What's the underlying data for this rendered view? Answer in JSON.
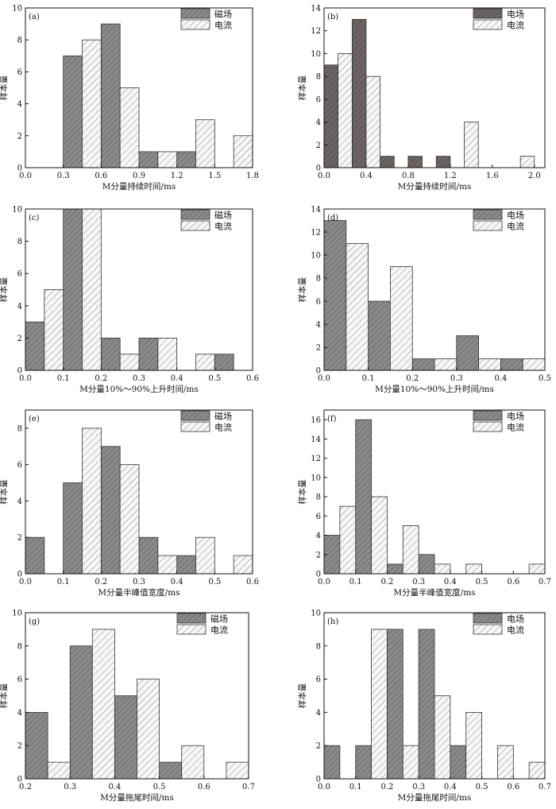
{
  "colors": {
    "dark_bar": "#8a8a8a",
    "dark_bar_b": "#6e6464",
    "light_bar": "#f4f4f4",
    "hatch": "#555555",
    "axis": "#111111"
  },
  "chart_data": [
    {
      "type": "bar",
      "panel": "(a)",
      "xlabel": "M分量持续时间/ms",
      "ylabel": "样本量",
      "xlim": [
        0,
        1.8
      ],
      "ylim": [
        0,
        10
      ],
      "xticks": [
        "0.0",
        "0.3",
        "0.6",
        "0.9",
        "1.2",
        "1.5",
        "1.8"
      ],
      "xtick_values": [
        0,
        0.3,
        0.6,
        0.9,
        1.2,
        1.5,
        1.8
      ],
      "yticks": [
        "0",
        "2",
        "4",
        "6",
        "8",
        "10"
      ],
      "ytick_values": [
        0,
        2,
        4,
        6,
        8,
        10
      ],
      "bin_width": 0.15,
      "legend_position": "top-right",
      "series": [
        {
          "name": "磁场",
          "style": "dark",
          "bins": [
            [
              0.3,
              0.45,
              7
            ],
            [
              0.6,
              0.75,
              9
            ],
            [
              0.9,
              1.05,
              1
            ],
            [
              1.2,
              1.35,
              1
            ]
          ]
        },
        {
          "name": "电流",
          "style": "light",
          "bins": [
            [
              0.45,
              0.6,
              8
            ],
            [
              0.75,
              0.9,
              5
            ],
            [
              1.05,
              1.2,
              1
            ],
            [
              1.35,
              1.5,
              3
            ],
            [
              1.65,
              1.8,
              2
            ]
          ]
        }
      ]
    },
    {
      "type": "bar",
      "panel": "(b)",
      "xlabel": "M分量持续时间/ms",
      "ylabel": "样本量",
      "xlim": [
        0,
        2.1
      ],
      "ylim": [
        0,
        14
      ],
      "xticks": [
        "0.0",
        "0.4",
        "0.8",
        "1.2",
        "1.6",
        "2.0"
      ],
      "xtick_values": [
        0,
        0.4,
        0.8,
        1.2,
        1.6,
        2.0
      ],
      "yticks": [
        "0",
        "2",
        "4",
        "6",
        "8",
        "10",
        "12",
        "14"
      ],
      "ytick_values": [
        0,
        2,
        4,
        6,
        8,
        10,
        12,
        14
      ],
      "bin_width": 0.133,
      "legend_position": "top-right",
      "series": [
        {
          "name": "电场",
          "style": "dark_b",
          "bins": [
            [
              0,
              0.133,
              9
            ],
            [
              0.267,
              0.4,
              13
            ],
            [
              0.533,
              0.667,
              1
            ],
            [
              0.8,
              0.933,
              1
            ],
            [
              1.067,
              1.2,
              1
            ]
          ]
        },
        {
          "name": "电流",
          "style": "light",
          "bins": [
            [
              0.133,
              0.267,
              10
            ],
            [
              0.4,
              0.533,
              8
            ],
            [
              1.333,
              1.467,
              4
            ],
            [
              1.867,
              2.0,
              1
            ]
          ]
        }
      ]
    },
    {
      "type": "bar",
      "panel": "(c)",
      "xlabel": "M分量10%～90%上升时间/ms",
      "ylabel": "样本量",
      "xlim": [
        0,
        0.6
      ],
      "ylim": [
        0,
        10
      ],
      "xticks": [
        "0.0",
        "0.1",
        "0.2",
        "0.3",
        "0.4",
        "0.5",
        "0.6"
      ],
      "xtick_values": [
        0,
        0.1,
        0.2,
        0.3,
        0.4,
        0.5,
        0.6
      ],
      "yticks": [
        "0",
        "2",
        "4",
        "6",
        "8",
        "10"
      ],
      "ytick_values": [
        0,
        2,
        4,
        6,
        8,
        10
      ],
      "bin_width": 0.05,
      "legend_position": "top-right",
      "series": [
        {
          "name": "磁场",
          "style": "dark",
          "bins": [
            [
              0,
              0.05,
              3
            ],
            [
              0.1,
              0.15,
              10
            ],
            [
              0.2,
              0.25,
              2
            ],
            [
              0.3,
              0.35,
              2
            ],
            [
              0.5,
              0.55,
              1
            ]
          ]
        },
        {
          "name": "电流",
          "style": "light",
          "bins": [
            [
              0.05,
              0.1,
              5
            ],
            [
              0.15,
              0.2,
              10
            ],
            [
              0.25,
              0.3,
              1
            ],
            [
              0.35,
              0.4,
              2
            ],
            [
              0.45,
              0.5,
              1
            ]
          ]
        }
      ]
    },
    {
      "type": "bar",
      "panel": "(d)",
      "xlabel": "M分量10%～90%上升时间/ms",
      "ylabel": "样本量",
      "xlim": [
        0,
        0.5
      ],
      "ylim": [
        0,
        14
      ],
      "xticks": [
        "0.0",
        "0.1",
        "0.2",
        "0.3",
        "0.4",
        "0.5"
      ],
      "xtick_values": [
        0,
        0.1,
        0.2,
        0.3,
        0.4,
        0.5
      ],
      "yticks": [
        "0",
        "2",
        "4",
        "6",
        "8",
        "10",
        "12",
        "14"
      ],
      "ytick_values": [
        0,
        2,
        4,
        6,
        8,
        10,
        12,
        14
      ],
      "bin_width": 0.05,
      "legend_position": "top-right",
      "series": [
        {
          "name": "电场",
          "style": "dark",
          "bins": [
            [
              0,
              0.05,
              13
            ],
            [
              0.1,
              0.15,
              6
            ],
            [
              0.2,
              0.25,
              1
            ],
            [
              0.3,
              0.35,
              3
            ],
            [
              0.4,
              0.45,
              1
            ]
          ]
        },
        {
          "name": "电流",
          "style": "light",
          "bins": [
            [
              0.05,
              0.1,
              11
            ],
            [
              0.15,
              0.2,
              9
            ],
            [
              0.25,
              0.3,
              1
            ],
            [
              0.35,
              0.4,
              1
            ],
            [
              0.45,
              0.5,
              1
            ]
          ]
        }
      ]
    },
    {
      "type": "bar",
      "panel": "(e)",
      "xlabel": "M分量半峰值宽度/ms",
      "ylabel": "样本量",
      "xlim": [
        0,
        0.6
      ],
      "ylim": [
        0,
        9
      ],
      "xticks": [
        "0.0",
        "0.1",
        "0.2",
        "0.3",
        "0.4",
        "0.5",
        "0.6"
      ],
      "xtick_values": [
        0,
        0.1,
        0.2,
        0.3,
        0.4,
        0.5,
        0.6
      ],
      "yticks": [
        "0",
        "2",
        "4",
        "6",
        "8"
      ],
      "ytick_values": [
        0,
        2,
        4,
        6,
        8
      ],
      "bin_width": 0.05,
      "legend_position": "top-right",
      "series": [
        {
          "name": "磁场",
          "style": "dark",
          "bins": [
            [
              0,
              0.05,
              2
            ],
            [
              0.1,
              0.15,
              5
            ],
            [
              0.2,
              0.25,
              7
            ],
            [
              0.3,
              0.35,
              2
            ],
            [
              0.4,
              0.45,
              1
            ]
          ]
        },
        {
          "name": "电流",
          "style": "light",
          "bins": [
            [
              0.15,
              0.2,
              8
            ],
            [
              0.25,
              0.3,
              6
            ],
            [
              0.35,
              0.4,
              1
            ],
            [
              0.45,
              0.5,
              2
            ],
            [
              0.55,
              0.6,
              1
            ]
          ]
        }
      ]
    },
    {
      "type": "bar",
      "panel": "(f)",
      "xlabel": "M分量半峰值宽度/ms",
      "ylabel": "样本量",
      "xlim": [
        0,
        0.7
      ],
      "ylim": [
        0,
        17
      ],
      "xticks": [
        "0.0",
        "0.1",
        "0.2",
        "0.3",
        "0.4",
        "0.5",
        "0.6",
        "0.7"
      ],
      "xtick_values": [
        0,
        0.1,
        0.2,
        0.3,
        0.4,
        0.5,
        0.6,
        0.7
      ],
      "yticks": [
        "0",
        "2",
        "4",
        "6",
        "8",
        "10",
        "12",
        "14",
        "16"
      ],
      "ytick_values": [
        0,
        2,
        4,
        6,
        8,
        10,
        12,
        14,
        16
      ],
      "bin_width": 0.05,
      "legend_position": "top-right",
      "series": [
        {
          "name": "电场",
          "style": "dark",
          "bins": [
            [
              0,
              0.05,
              4
            ],
            [
              0.1,
              0.15,
              16
            ],
            [
              0.2,
              0.25,
              1
            ],
            [
              0.3,
              0.35,
              2
            ]
          ]
        },
        {
          "name": "电流",
          "style": "light",
          "bins": [
            [
              0.05,
              0.1,
              7
            ],
            [
              0.15,
              0.2,
              8
            ],
            [
              0.25,
              0.3,
              5
            ],
            [
              0.35,
              0.4,
              1
            ],
            [
              0.45,
              0.5,
              1
            ],
            [
              0.65,
              0.7,
              1
            ]
          ]
        }
      ]
    },
    {
      "type": "bar",
      "panel": "(g)",
      "xlabel": "M分量拖尾时间/ms",
      "ylabel": "样本量",
      "xlim": [
        0.2,
        0.7
      ],
      "ylim": [
        0,
        10
      ],
      "xticks": [
        "0.2",
        "0.3",
        "0.4",
        "0.5",
        "0.6",
        "0.7"
      ],
      "xtick_values": [
        0.2,
        0.3,
        0.4,
        0.5,
        0.6,
        0.7
      ],
      "yticks": [
        "0",
        "2",
        "4",
        "6",
        "8",
        "10"
      ],
      "ytick_values": [
        0,
        2,
        4,
        6,
        8,
        10
      ],
      "bin_width": 0.05,
      "legend_position": "top-right",
      "series": [
        {
          "name": "磁场",
          "style": "dark",
          "bins": [
            [
              0.2,
              0.25,
              4
            ],
            [
              0.3,
              0.35,
              8
            ],
            [
              0.4,
              0.45,
              5
            ],
            [
              0.5,
              0.55,
              1
            ]
          ]
        },
        {
          "name": "电流",
          "style": "light",
          "bins": [
            [
              0.25,
              0.3,
              1
            ],
            [
              0.35,
              0.4,
              9
            ],
            [
              0.45,
              0.5,
              6
            ],
            [
              0.55,
              0.6,
              2
            ],
            [
              0.65,
              0.7,
              1
            ]
          ]
        }
      ]
    },
    {
      "type": "bar",
      "panel": "(h)",
      "xlabel": "M分量拖尾时间/ms",
      "ylabel": "样本量",
      "xlim": [
        0,
        0.7
      ],
      "ylim": [
        0,
        10
      ],
      "xticks": [
        "0.0",
        "0.1",
        "0.2",
        "0.3",
        "0.4",
        "0.5",
        "0.6",
        "0.7"
      ],
      "xtick_values": [
        0,
        0.1,
        0.2,
        0.3,
        0.4,
        0.5,
        0.6,
        0.7
      ],
      "yticks": [
        "0",
        "2",
        "4",
        "6",
        "8",
        "10"
      ],
      "ytick_values": [
        0,
        2,
        4,
        6,
        8,
        10
      ],
      "bin_width": 0.05,
      "legend_position": "top-right",
      "series": [
        {
          "name": "电场",
          "style": "dark",
          "bins": [
            [
              0,
              0.05,
              2
            ],
            [
              0.1,
              0.15,
              2
            ],
            [
              0.2,
              0.25,
              9
            ],
            [
              0.3,
              0.35,
              9
            ],
            [
              0.4,
              0.45,
              2
            ]
          ]
        },
        {
          "name": "电流",
          "style": "light",
          "bins": [
            [
              0.15,
              0.2,
              9
            ],
            [
              0.25,
              0.3,
              2
            ],
            [
              0.35,
              0.4,
              5
            ],
            [
              0.45,
              0.5,
              4
            ],
            [
              0.55,
              0.6,
              2
            ],
            [
              0.65,
              0.7,
              1
            ]
          ]
        }
      ]
    }
  ]
}
